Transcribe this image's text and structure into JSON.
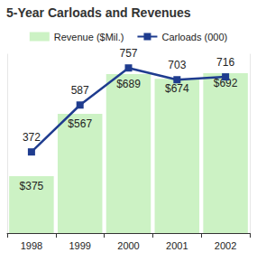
{
  "chart_data": {
    "type": "bar",
    "title": "5-Year Carloads and Revenues",
    "categories": [
      "1998",
      "1999",
      "2000",
      "2001",
      "2002"
    ],
    "series": [
      {
        "name": "Revenue ($Mil.)",
        "type": "bar",
        "color": "#ccf2c4",
        "values": [
          375,
          567,
          689,
          674,
          692
        ],
        "value_labels": [
          "$375",
          "$567",
          "$689",
          "$674",
          "$692"
        ]
      },
      {
        "name": "Carloads (000)",
        "type": "line",
        "axis": "y2",
        "color": "#1f3c8f",
        "marker": "square",
        "values": [
          372,
          587,
          757,
          703,
          716
        ]
      }
    ],
    "ylim": [
      200,
      750
    ],
    "y2lim": [
      0,
      820
    ],
    "grid": false,
    "legend": "top",
    "data_labels": true,
    "tick_labels": "x"
  }
}
